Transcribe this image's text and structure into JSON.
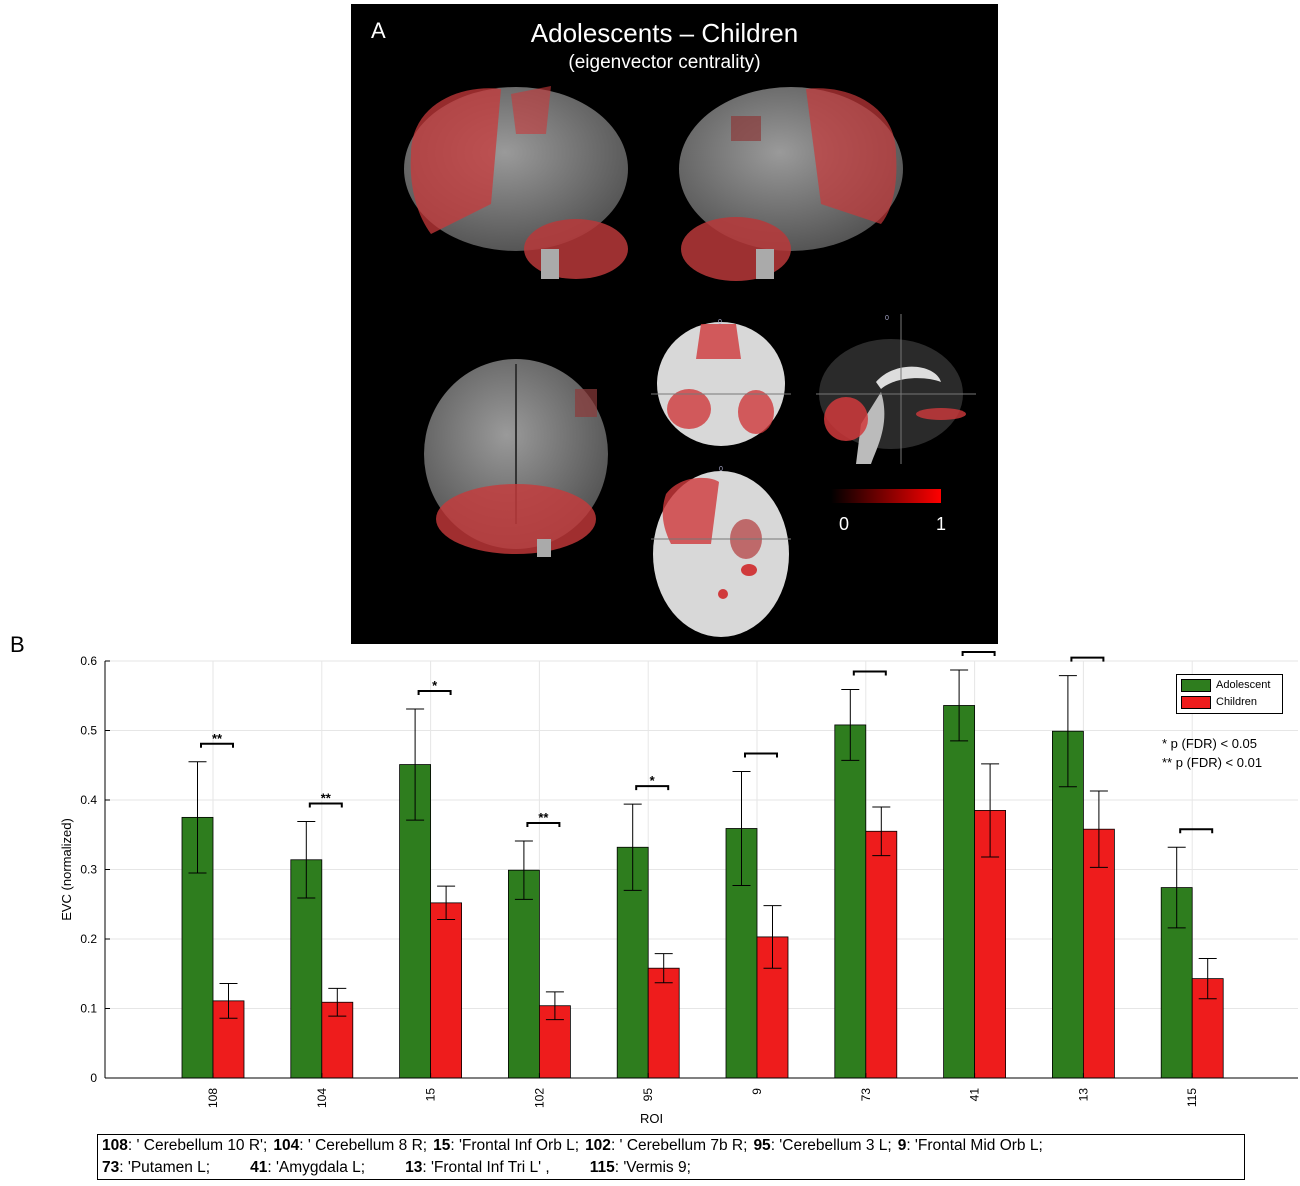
{
  "panel_a": {
    "letter": "A",
    "title": "Adolescents – Children",
    "subtitle": "(eigenvector centrality)",
    "colorbar": {
      "min_label": "0",
      "max_label": "1",
      "low_color": "#000000",
      "high_color": "#ff0000"
    },
    "slice_markers": [
      "0",
      "0",
      "0"
    ]
  },
  "panel_b": {
    "letter": "B"
  },
  "chart_data": {
    "type": "bar",
    "categories": [
      "108",
      "104",
      "15",
      "102",
      "95",
      "9",
      "73",
      "41",
      "13",
      "115"
    ],
    "series": [
      {
        "name": "Adolescent",
        "color": "#2e7d1e",
        "values": [
          0.375,
          0.314,
          0.451,
          0.299,
          0.332,
          0.359,
          0.508,
          0.536,
          0.499,
          0.274
        ],
        "error": [
          0.08,
          0.055,
          0.08,
          0.042,
          0.062,
          0.082,
          0.051,
          0.051,
          0.08,
          0.058
        ]
      },
      {
        "name": "Children",
        "color": "#ee1c1c",
        "values": [
          0.111,
          0.109,
          0.252,
          0.104,
          0.158,
          0.203,
          0.355,
          0.385,
          0.358,
          0.143
        ],
        "error": [
          0.025,
          0.02,
          0.024,
          0.02,
          0.021,
          0.045,
          0.035,
          0.067,
          0.055,
          0.029
        ]
      }
    ],
    "significance": [
      "**",
      "**",
      "*",
      "**",
      "*",
      "",
      "",
      "",
      "",
      ""
    ],
    "xlabel": "ROI",
    "ylabel": "EVC (normalized)",
    "ylim": [
      0,
      0.6
    ],
    "yticks": [
      "0",
      "0.1",
      "0.2",
      "0.3",
      "0.4",
      "0.5",
      "0.6"
    ],
    "grid": true,
    "legend_position": "top-right",
    "sig_notes": [
      "*   p (FDR) < 0.05",
      "** p (FDR) < 0.01"
    ]
  },
  "roi_legend": {
    "line1": [
      {
        "num": "108",
        "name": "' Cerebellum 10 R';"
      },
      {
        "num": "104",
        "name": "' Cerebellum 8 R;"
      },
      {
        "num": "15",
        "name": "'Frontal Inf Orb L;"
      },
      {
        "num": "102",
        "name": "' Cerebellum 7b R;"
      },
      {
        "num": "95",
        "name": "'Cerebellum 3 L;"
      },
      {
        "num": "9",
        "name": "'Frontal Mid Orb L;"
      }
    ],
    "line2": [
      {
        "num": "73",
        "name": "'Putamen L;"
      },
      {
        "num": "41",
        "name": "'Amygdala L;"
      },
      {
        "num": "13",
        "name": "'Frontal Inf Tri L' ,"
      },
      {
        "num": "115",
        "name": "'Vermis 9;"
      }
    ]
  }
}
